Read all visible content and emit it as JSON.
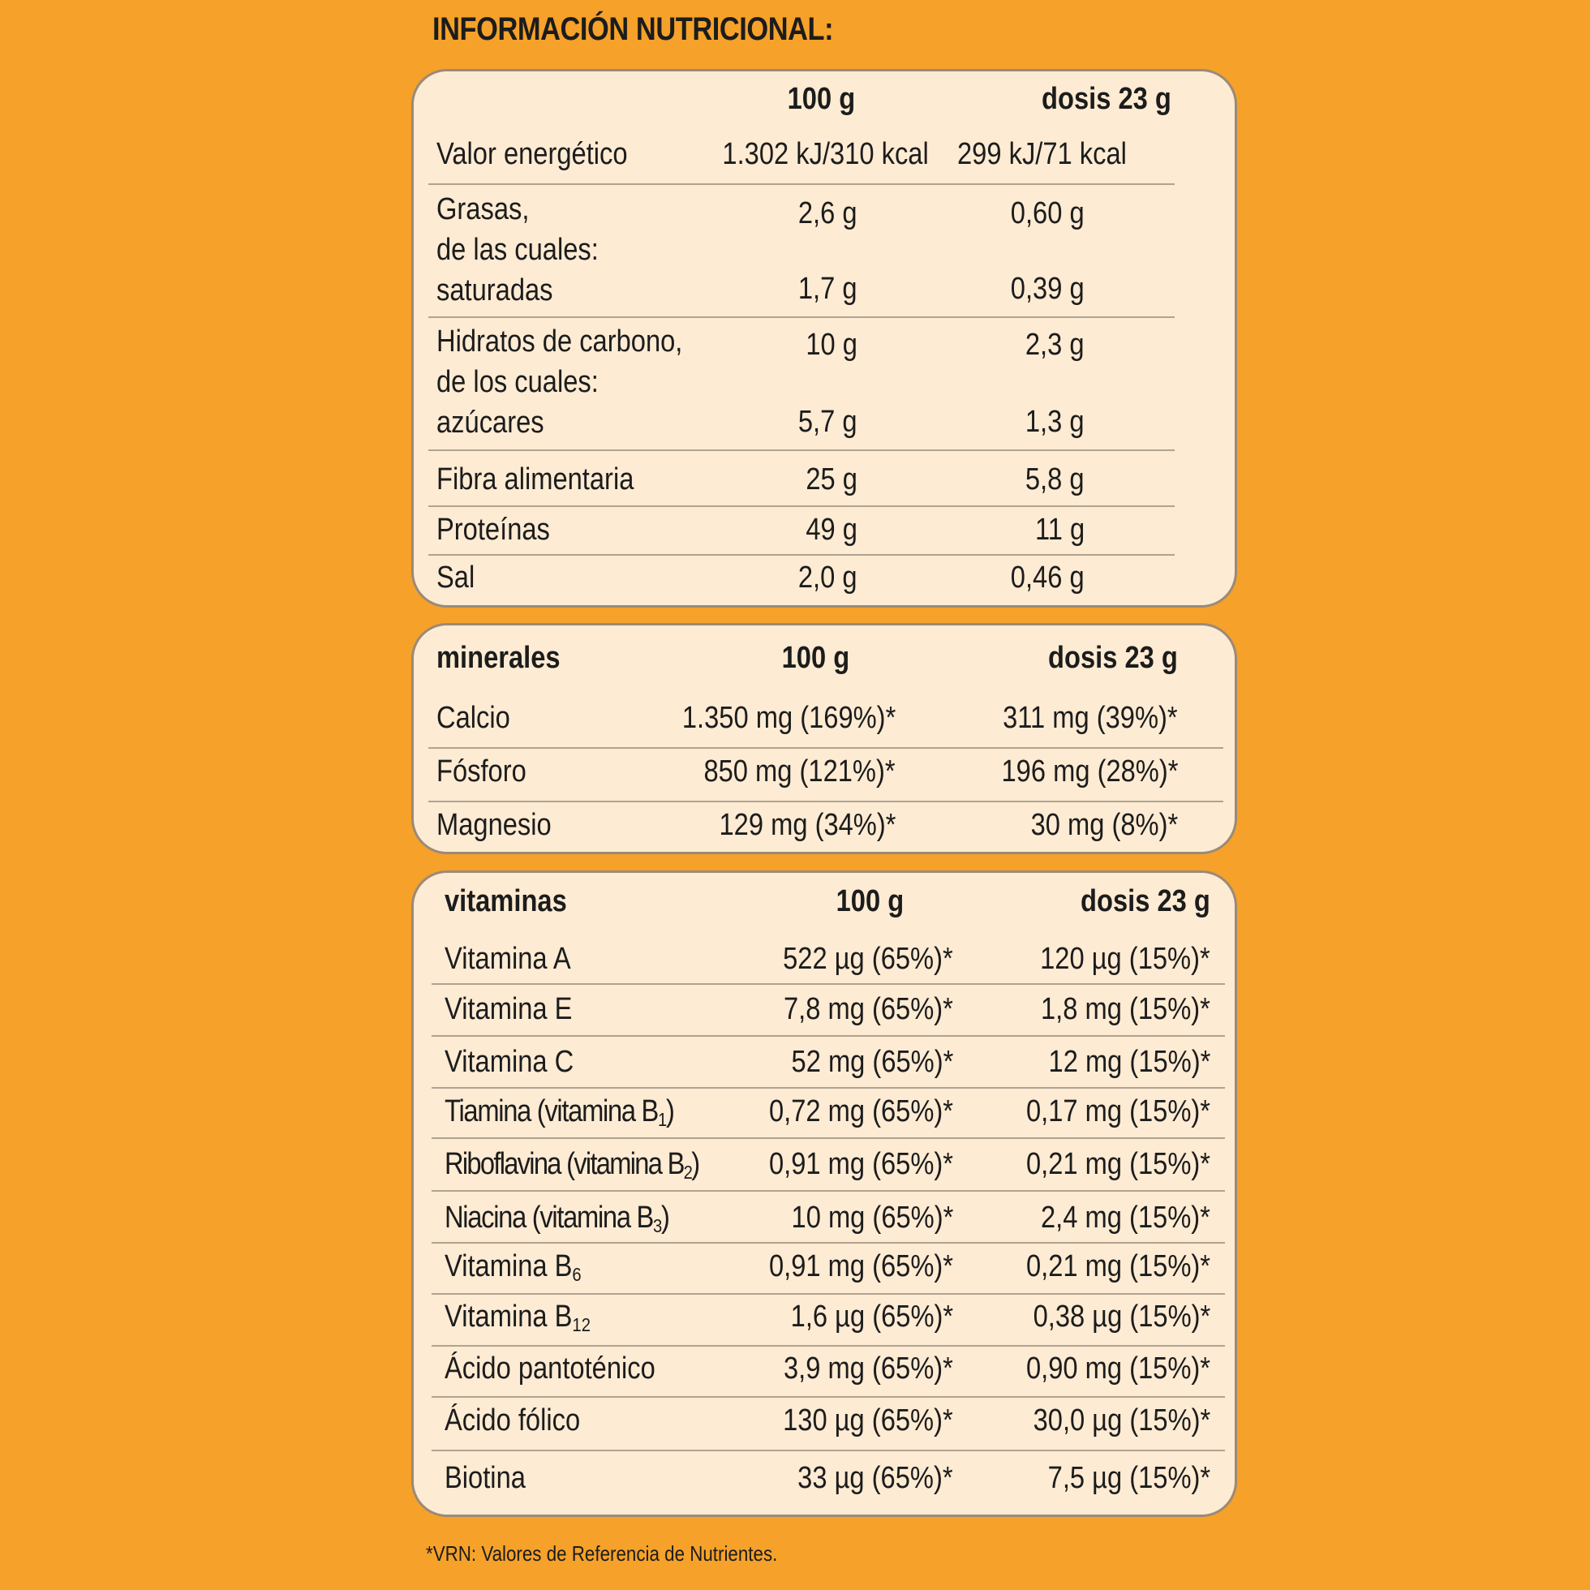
{
  "title": "INFORMACIÓN NUTRICIONAL:",
  "nutrition": {
    "col_100g": "100 g",
    "col_dose": "dosis 23 g",
    "energy": {
      "label": "Valor energético",
      "per100": "1.302 kJ/310 kcal",
      "dose": "299 kJ/71 kcal"
    },
    "fat": {
      "label": "Grasas,",
      "per100": "2,6 g",
      "dose": "0,60 g",
      "sub_label1": "de las cuales:",
      "sub_label2": "saturadas",
      "sub_per100": "1,7 g",
      "sub_dose": "0,39 g"
    },
    "carbs": {
      "label": "Hidratos de carbono,",
      "per100": "10 g",
      "dose": "2,3 g",
      "sub_label1": "de los cuales:",
      "sub_label2": "azúcares",
      "sub_per100": "5,7 g",
      "sub_dose": "1,3 g"
    },
    "fiber": {
      "label": "Fibra alimentaria",
      "per100": "25 g",
      "dose": "5,8 g"
    },
    "protein": {
      "label": "Proteínas",
      "per100": "49 g",
      "dose": "11 g"
    },
    "salt": {
      "label": "Sal",
      "per100": "2,0 g",
      "dose": "0,46 g"
    }
  },
  "minerals": {
    "heading": "minerales",
    "col_100g": "100 g",
    "col_dose": "dosis 23 g",
    "rows": [
      {
        "label": "Calcio",
        "per100": "1.350 mg (169%)*",
        "dose": "311 mg (39%)*"
      },
      {
        "label": "Fósforo",
        "per100": "850 mg (121%)*",
        "dose": "196 mg (28%)*"
      },
      {
        "label": "Magnesio",
        "per100": "129 mg (34%)*",
        "dose": "30 mg (8%)*"
      }
    ]
  },
  "vitamins": {
    "heading": "vitaminas",
    "col_100g": "100 g",
    "col_dose": "dosis 23 g",
    "rows": [
      {
        "label": "Vitamina A",
        "per100": "522 µg (65%)*",
        "dose": "120 µg (15%)*"
      },
      {
        "label": "Vitamina E",
        "per100": "7,8 mg (65%)*",
        "dose": "1,8 mg (15%)*"
      },
      {
        "label": "Vitamina C",
        "per100": "52 mg (65%)*",
        "dose": "12 mg (15%)*"
      },
      {
        "label": "Tiamina (vitamina B",
        "sub": "1",
        "label_end": ")",
        "per100": "0,72 mg (65%)*",
        "dose": "0,17 mg (15%)*"
      },
      {
        "label": "Riboflavina (vitamina B",
        "sub": "2",
        "label_end": ")",
        "per100": "0,91 mg (65%)*",
        "dose": "0,21 mg (15%)*"
      },
      {
        "label": "Niacina (vitamina B",
        "sub": "3",
        "label_end": ")",
        "per100": "10 mg (65%)*",
        "dose": "2,4 mg (15%)*"
      },
      {
        "label": "Vitamina B",
        "sub": "6",
        "per100": "0,91 mg (65%)*",
        "dose": "0,21 mg (15%)*"
      },
      {
        "label": "Vitamina B",
        "sub": "12",
        "per100": "1,6 µg (65%)*",
        "dose": "0,38 µg (15%)*"
      },
      {
        "label": "Ácido pantoténico",
        "per100": "3,9 mg (65%)*",
        "dose": "0,90 mg (15%)*"
      },
      {
        "label": "Ácido fólico",
        "per100": "130 µg (65%)*",
        "dose": "30,0 µg (15%)*"
      },
      {
        "label": "Biotina",
        "per100": "33 µg (65%)*",
        "dose": "7,5 µg (15%)*"
      }
    ]
  },
  "footnote": "*VRN: Valores de Referencia de Nutrientes."
}
